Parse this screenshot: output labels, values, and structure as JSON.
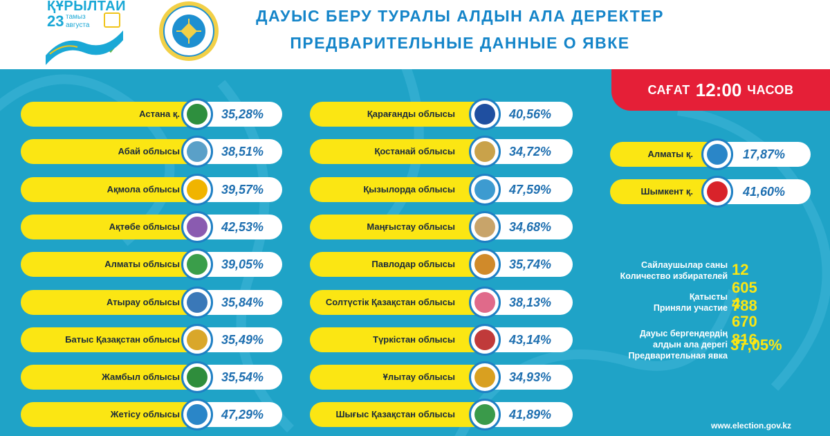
{
  "header": {
    "kurultai_title": "ҚҰРЫЛТАЙ",
    "kurultai_date_num": "23",
    "kurultai_date_kz": "тамыз",
    "kurultai_date_ru": "августа",
    "title_kz": "ДАУЫС БЕРУ ТУРАЛЫ АЛДЫН АЛА ДЕРЕКТЕР",
    "title_ru": "ПРЕДВАРИТЕЛЬНЫЕ ДАННЫЕ О ЯВКЕ"
  },
  "time_badge": {
    "prefix": "САҒАТ",
    "time": "12:00",
    "suffix": "ЧАСОВ"
  },
  "regions_left": [
    {
      "name": "Астана қ.",
      "value": "35,28%",
      "logo_color": "#2e8f3e"
    },
    {
      "name": "Абай облысы",
      "value": "38,51%",
      "logo_color": "#5aa0c8"
    },
    {
      "name": "Ақмола облысы",
      "value": "39,57%",
      "logo_color": "#f0b400"
    },
    {
      "name": "Ақтөбе облысы",
      "value": "42,53%",
      "logo_color": "#8a5bb0"
    },
    {
      "name": "Алматы облысы",
      "value": "39,05%",
      "logo_color": "#3a9e4a"
    },
    {
      "name": "Атырау  облысы",
      "value": "35,84%",
      "logo_color": "#3a78b8"
    },
    {
      "name": "Батыс Қазақстан  облысы",
      "value": "35,49%",
      "logo_color": "#d9a72a"
    },
    {
      "name": "Жамбыл облысы",
      "value": "35,54%",
      "logo_color": "#2f8d3c"
    },
    {
      "name": "Жетісу облысы",
      "value": "47,29%",
      "logo_color": "#2a86c8"
    }
  ],
  "regions_middle": [
    {
      "name": "Қарағанды облысы",
      "value": "40,56%",
      "logo_color": "#1f4fa0"
    },
    {
      "name": "Қостанай облысы",
      "value": "34,72%",
      "logo_color": "#c9a24a"
    },
    {
      "name": "Қызылорда облысы",
      "value": "47,59%",
      "logo_color": "#3d9bd0"
    },
    {
      "name": "Маңғыстау облысы",
      "value": "34,68%",
      "logo_color": "#c8a46a"
    },
    {
      "name": "Павлодар облысы",
      "value": "35,74%",
      "logo_color": "#d08a2a"
    },
    {
      "name": "Солтүстік Қазақстан облысы",
      "value": "38,13%",
      "logo_color": "#e06a8a"
    },
    {
      "name": "Түркістан облысы",
      "value": "43,14%",
      "logo_color": "#c03a3a"
    },
    {
      "name": "Ұлытау облысы",
      "value": "34,93%",
      "logo_color": "#d9a020"
    },
    {
      "name": "Шығыс Қазақстан облысы",
      "value": "41,89%",
      "logo_color": "#3a9a4a"
    }
  ],
  "regions_right": [
    {
      "name": "Алматы қ.",
      "value": "17,87%",
      "logo_color": "#2a86c8"
    },
    {
      "name": "Шымкент қ.",
      "value": "41,60%",
      "logo_color": "#d8232a"
    }
  ],
  "stats": {
    "voters_kz": "Сайлаушылар саны",
    "voters_ru": "Количество избирателей",
    "voters_value": "12 605 788",
    "participated_kz": "Қатысты",
    "participated_ru": "Приняли участие",
    "participated_value": "4 670 816",
    "turnout_kz1": "Дауыс бергендердің",
    "turnout_kz2": "алдын ала дерегі",
    "turnout_ru": "Предварительная явка",
    "turnout_value": "37,05%"
  },
  "footer": {
    "url": "www.election.gov.kz"
  },
  "colors": {
    "panel": "#1fa3c7",
    "pill": "#fbe613",
    "badge": "#e51f37",
    "title": "#1585c9"
  }
}
